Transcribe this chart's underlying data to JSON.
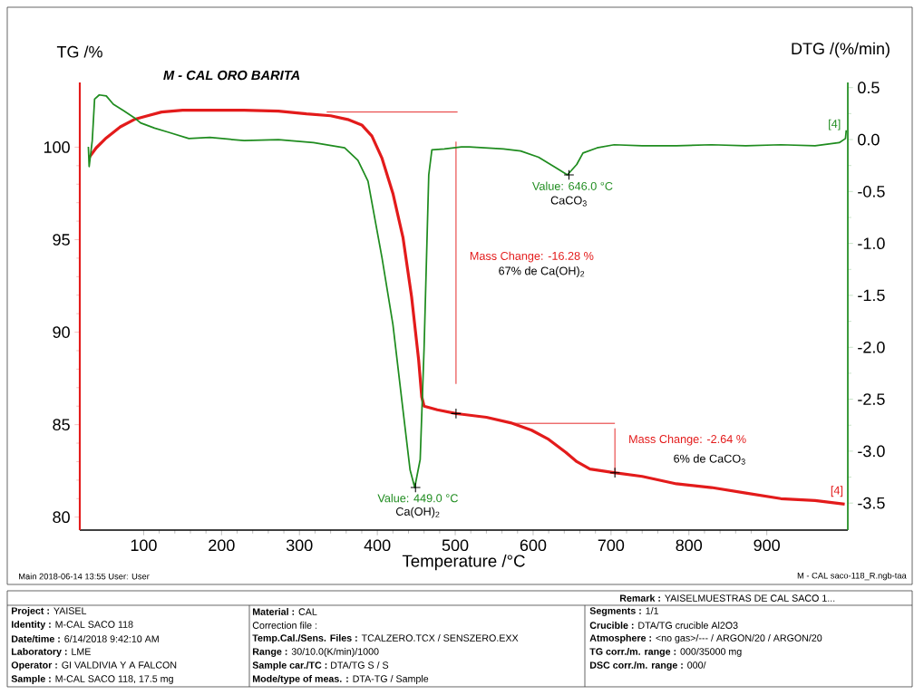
{
  "chart_data": {
    "type": "line",
    "title": "M - CAL ORO BARITA",
    "xlabel": "Temperature /°C",
    "ylabel": "TG /%",
    "y2label": "DTG /(%/min)",
    "xlim": [
      18,
      1004
    ],
    "ylim": [
      79.3,
      103.5
    ],
    "y2lim": [
      -3.76,
      0.55
    ],
    "xticks": [
      100,
      200,
      300,
      400,
      500,
      600,
      700,
      800,
      900
    ],
    "yticks": [
      80,
      85,
      90,
      95,
      100
    ],
    "y2ticks": [
      -3.5,
      {
        "value": -3,
        "label": "-3.0"
      },
      -2.5,
      {
        "value": -2,
        "label": "-2.0"
      },
      -1.5,
      {
        "value": -1,
        "label": "-1.0"
      },
      -0.5,
      {
        "value": 0,
        "label": "0.0"
      },
      0.5
    ],
    "marker": "none",
    "line_style": "solid",
    "series": [
      {
        "color": "#e31b1b",
        "x": [
          30,
          39,
          52,
          70,
          88,
          105,
          123,
          150,
          185,
          229,
          273,
          309,
          340,
          362,
          380,
          393,
          406,
          420,
          433,
          444,
          453,
          457,
          460,
          477,
          501,
          540,
          571,
          598,
          620,
          642,
          656,
          673,
          704,
          740,
          784,
          829,
          873,
          918,
          962,
          1000
        ],
        "values": [
          99.44,
          99.96,
          100.5,
          101.1,
          101.5,
          101.7,
          101.9,
          102.0,
          102.0,
          102.0,
          101.95,
          101.8,
          101.7,
          101.5,
          101.2,
          100.6,
          99.4,
          97.5,
          95.1,
          91.9,
          88.5,
          86.5,
          86.0,
          85.8,
          85.6,
          85.4,
          85.1,
          84.7,
          84.2,
          83.5,
          83.0,
          82.6,
          82.4,
          82.2,
          81.8,
          81.6,
          81.3,
          81.0,
          80.9,
          80.7
        ]
      },
      {
        "color": "#1f8c1f",
        "axis": "y2",
        "x": [
          29,
          30,
          34,
          37,
          43,
          52,
          61,
          74,
          88,
          96,
          114,
          132,
          158,
          185,
          229,
          273,
          318,
          358,
          375,
          388,
          406,
          420,
          433,
          442,
          448,
          455,
          460,
          466,
          470,
          486,
          508,
          518,
          562,
          584,
          607,
          629,
          644,
          656,
          664,
          682,
          704,
          740,
          784,
          829,
          873,
          918,
          962,
          993,
          1001,
          1002
        ],
        "values": [
          -0.07,
          -0.26,
          -0.01,
          0.39,
          0.43,
          0.42,
          0.34,
          0.28,
          0.21,
          0.16,
          0.11,
          0.07,
          0.01,
          0.02,
          -0.01,
          0.0,
          -0.03,
          -0.08,
          -0.2,
          -0.4,
          -1.14,
          -1.78,
          -2.61,
          -3.18,
          -3.35,
          -3.08,
          -2.01,
          -0.34,
          -0.1,
          -0.09,
          -0.07,
          -0.07,
          -0.09,
          -0.11,
          -0.17,
          -0.27,
          -0.34,
          -0.24,
          -0.13,
          -0.08,
          -0.05,
          -0.06,
          -0.06,
          -0.05,
          -0.06,
          -0.05,
          -0.06,
          -0.03,
          0.01,
          0.09
        ]
      },
      {
        "color": "#e31b1b",
        "x": [
          335,
          503
        ],
        "values": [
          101.9,
          101.9
        ]
      },
      {
        "color": "#e31b1b",
        "x": [
          501,
          501
        ],
        "values": [
          100.3,
          87.2
        ]
      },
      {
        "color": "#e31b1b",
        "x": [
          571,
          705
        ],
        "values": [
          85.07,
          85.07
        ]
      },
      {
        "color": "#e31b1b",
        "x": [
          705,
          705
        ],
        "values": [
          84.8,
          82.5
        ]
      },
      {
        "type": "scatter",
        "marker": "cross",
        "color": "#000000",
        "x": [
          501,
          705
        ],
        "values": [
          85.6,
          82.4
        ]
      },
      {
        "type": "scatter",
        "marker": "cross",
        "color": "#000000",
        "axis": "y2",
        "x": [
          449,
          646
        ],
        "values": [
          -3.35,
          -0.34
        ]
      }
    ],
    "annotations": [
      {
        "text": "Value: 449.0 °C",
        "x": 449,
        "y": 81.6
      },
      {
        "text": "Ca(OH)$_{2}$",
        "x": 449,
        "y": 81.6
      },
      {
        "text": "Value: 646.0 °C",
        "x": 646,
        "y": 98.47
      },
      {
        "text": "CaCO$_{3}$",
        "x": 646,
        "y": 98.47
      },
      {
        "text": "Mass Change: -16.28 %",
        "x": 501,
        "y": 93.7
      },
      {
        "text": "Mass Change: -2.64 %",
        "x": 705,
        "y": 83.8
      },
      {
        "text": "[4]",
        "x": 1000,
        "y": 80.7
      },
      {
        "text": "[4]",
        "x": 1000,
        "y": 100.95
      },
      "67% de Ca(OH)$_{2}$",
      "6% de CaCO$_{3}$",
      "Main   2018-06-14 13:55   User: User",
      "M - CAL saco-118_R.ngb-taa",
      "**Remark :** YAISELMUESTRAS DE CAL SACO 1...",
      "**Project :** YAISEL",
      "**Identity :** M-CAL SACO 118",
      "**Date/time :** 6/14/2018 9:42:10 AM",
      "**Laboratory :** LME",
      "**Operator :** GI VALDIVIA Y A FALCON",
      "**Sample :** M-CAL SACO 118, 17.5 mg",
      "**Material :** CAL",
      "Correction file :",
      "**Temp.Cal./Sens. Files :** TCALZERO.TCX / SENSZERO.EXX",
      "**Range :** 30/10.0(K/min)/1000",
      "**Sample car./TC :** DTA/TG S / S",
      "**Mode/type of meas. :** DTA-TG / Sample",
      "**Segments :** 1/1",
      "**Crucible :** DTA/TG crucible Al2O3",
      "**Atmosphere :** <no gas>/--- / ARGON/20 / ARGON/20",
      "**TG corr./m. range :** 000/35000 mg",
      "**DSC corr./m. range :** 000/"
    ]
  }
}
